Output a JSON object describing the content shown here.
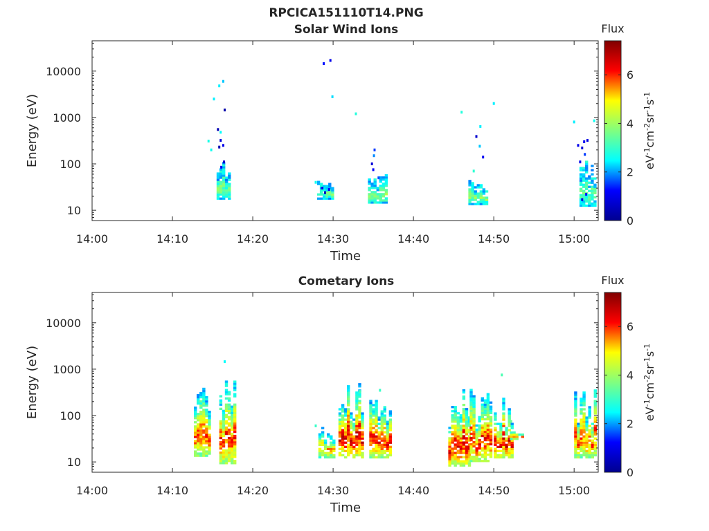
{
  "figure_title": "RPCICA151110T14.PNG",
  "colors": {
    "axis": "#262626",
    "colormap": [
      "#00008f",
      "#0000ff",
      "#00ffff",
      "#80ff80",
      "#ffff00",
      "#ff0000",
      "#800000"
    ]
  },
  "chart_data": [
    {
      "type": "heatmap",
      "title": "Solar Wind Ions",
      "xlabel": "Time",
      "ylabel": "Energy (eV)",
      "x_ticks": [
        "14:00",
        "14:10",
        "14:20",
        "14:30",
        "14:40",
        "14:50",
        "15:00"
      ],
      "xlim": [
        "14:00",
        "15:03"
      ],
      "y_scale": "log",
      "y_ticks": [
        "10",
        "100",
        "1000",
        "10000"
      ],
      "ylim": [
        6,
        45000
      ],
      "colorbar": {
        "label": "Flux",
        "unit": "eV-1cm-2sr-1s-1",
        "ticks": [
          "0",
          "2",
          "4",
          "6"
        ],
        "range": [
          0,
          7.4
        ]
      },
      "clusters": [
        {
          "t0": "14:15:30",
          "t1": "14:17:00",
          "e_lo": 17,
          "e_hi": 120,
          "flux": 3.8
        },
        {
          "t0": "14:28:00",
          "t1": "14:30:00",
          "e_lo": 17,
          "e_hi": 45,
          "flux": 3.6
        },
        {
          "t0": "14:34:20",
          "t1": "14:36:40",
          "e_lo": 14,
          "e_hi": 60,
          "flux": 4.0
        },
        {
          "t0": "14:46:50",
          "t1": "14:49:00",
          "e_lo": 13,
          "e_hi": 45,
          "flux": 3.9
        },
        {
          "t0": "15:00:40",
          "t1": "15:02:40",
          "e_lo": 12,
          "e_hi": 120,
          "flux": 3.4
        }
      ],
      "points": [
        {
          "t": "14:16:20",
          "e": 6000,
          "flux": 2.2
        },
        {
          "t": "14:15:50",
          "e": 4800,
          "flux": 2.4
        },
        {
          "t": "14:15:10",
          "e": 2500,
          "flux": 2.4
        },
        {
          "t": "14:16:30",
          "e": 1450,
          "flux": 0.3
        },
        {
          "t": "14:15:40",
          "e": 550,
          "flux": 0.4
        },
        {
          "t": "14:16:00",
          "e": 320,
          "flux": 0.8
        },
        {
          "t": "14:16:20",
          "e": 250,
          "flux": 1.0
        },
        {
          "t": "14:16:00",
          "e": 480,
          "flux": 2.5
        },
        {
          "t": "14:15:50",
          "e": 230,
          "flux": 0.4
        },
        {
          "t": "14:14:50",
          "e": 200,
          "flux": 2.6
        },
        {
          "t": "14:14:30",
          "e": 310,
          "flux": 2.7
        },
        {
          "t": "14:16:25",
          "e": 110,
          "flux": 0.7
        },
        {
          "t": "14:16:05",
          "e": 85,
          "flux": 1.1
        },
        {
          "t": "14:15:55",
          "e": 60,
          "flux": 2.2
        },
        {
          "t": "14:28:50",
          "e": 14500,
          "flux": 1.3
        },
        {
          "t": "14:29:40",
          "e": 17000,
          "flux": 1.0
        },
        {
          "t": "14:29:55",
          "e": 2800,
          "flux": 2.3
        },
        {
          "t": "14:32:50",
          "e": 1200,
          "flux": 2.8
        },
        {
          "t": "14:28:40",
          "e": 30,
          "flux": 1.0
        },
        {
          "t": "14:29:00",
          "e": 24,
          "flux": 0.5
        },
        {
          "t": "14:29:30",
          "e": 28,
          "flux": 1.2
        },
        {
          "t": "14:27:50",
          "e": 40,
          "flux": 2.6
        },
        {
          "t": "14:35:10",
          "e": 200,
          "flux": 1.5
        },
        {
          "t": "14:35:05",
          "e": 150,
          "flux": 1.9
        },
        {
          "t": "14:34:50",
          "e": 100,
          "flux": 0.8
        },
        {
          "t": "14:35:00",
          "e": 75,
          "flux": 1.2
        },
        {
          "t": "14:35:40",
          "e": 50,
          "flux": 1.6
        },
        {
          "t": "14:46:00",
          "e": 1300,
          "flux": 2.8
        },
        {
          "t": "14:50:00",
          "e": 2000,
          "flux": 2.4
        },
        {
          "t": "14:48:20",
          "e": 640,
          "flux": 2.4
        },
        {
          "t": "14:47:50",
          "e": 390,
          "flux": 0.7
        },
        {
          "t": "14:48:15",
          "e": 240,
          "flux": 2.2
        },
        {
          "t": "14:48:40",
          "e": 140,
          "flux": 1.1
        },
        {
          "t": "14:47:30",
          "e": 70,
          "flux": 2.9
        },
        {
          "t": "15:00:00",
          "e": 800,
          "flux": 2.4
        },
        {
          "t": "15:02:30",
          "e": 850,
          "flux": 2.6
        },
        {
          "t": "15:00:30",
          "e": 250,
          "flux": 1.0
        },
        {
          "t": "15:01:00",
          "e": 220,
          "flux": 0.8
        },
        {
          "t": "15:01:15",
          "e": 300,
          "flux": 1.1
        },
        {
          "t": "15:01:40",
          "e": 320,
          "flux": 0.9
        },
        {
          "t": "15:00:45",
          "e": 110,
          "flux": 1.0
        },
        {
          "t": "15:01:20",
          "e": 160,
          "flux": 1.5
        },
        {
          "t": "15:01:30",
          "e": 22,
          "flux": 1.3
        },
        {
          "t": "15:01:00",
          "e": 17,
          "flux": 0.9
        }
      ]
    },
    {
      "type": "heatmap",
      "title": "Cometary Ions",
      "xlabel": "Time",
      "ylabel": "Energy (eV)",
      "x_ticks": [
        "14:00",
        "14:10",
        "14:20",
        "14:30",
        "14:40",
        "14:50",
        "15:00"
      ],
      "xlim": [
        "14:00",
        "15:03"
      ],
      "y_scale": "log",
      "y_ticks": [
        "10",
        "100",
        "1000",
        "10000"
      ],
      "ylim": [
        6,
        45000
      ],
      "colorbar": {
        "label": "Flux",
        "unit": "eV-1cm-2sr-1s-1",
        "ticks": [
          "0",
          "2",
          "4",
          "6"
        ],
        "range": [
          0,
          7.4
        ]
      },
      "clusters": [
        {
          "t0": "14:12:40",
          "t1": "14:14:30",
          "e_lo": 13,
          "e_hi": 400,
          "flux": 6.0
        },
        {
          "t0": "14:15:50",
          "t1": "14:17:40",
          "e_lo": 9,
          "e_hi": 550,
          "flux": 6.2
        },
        {
          "t0": "14:28:10",
          "t1": "14:30:10",
          "e_lo": 12,
          "e_hi": 60,
          "flux": 5.4
        },
        {
          "t0": "14:30:40",
          "t1": "14:33:40",
          "e_lo": 12,
          "e_hi": 500,
          "flux": 6.6
        },
        {
          "t0": "14:34:30",
          "t1": "14:37:00",
          "e_lo": 12,
          "e_hi": 420,
          "flux": 6.4
        },
        {
          "t0": "14:44:20",
          "t1": "14:47:00",
          "e_lo": 8,
          "e_hi": 350,
          "flux": 6.5
        },
        {
          "t0": "14:47:00",
          "t1": "14:49:30",
          "e_lo": 10,
          "e_hi": 380,
          "flux": 6.3
        },
        {
          "t0": "14:50:00",
          "t1": "14:52:10",
          "e_lo": 12,
          "e_hi": 300,
          "flux": 6.5
        },
        {
          "t0": "14:52:00",
          "t1": "14:53:40",
          "e_lo": 30,
          "e_hi": 45,
          "flux": 5.8
        },
        {
          "t0": "15:00:00",
          "t1": "15:02:40",
          "e_lo": 12,
          "e_hi": 450,
          "flux": 6.0
        }
      ],
      "points": [
        {
          "t": "14:16:30",
          "e": 1450,
          "flux": 2.5
        },
        {
          "t": "14:51:00",
          "e": 750,
          "flux": 3.2
        },
        {
          "t": "14:52:10",
          "e": 75,
          "flux": 3.5
        },
        {
          "t": "14:27:50",
          "e": 60,
          "flux": 3.0
        },
        {
          "t": "14:33:20",
          "e": 330,
          "flux": 3.2
        },
        {
          "t": "14:35:50",
          "e": 350,
          "flux": 3.0
        }
      ]
    }
  ]
}
